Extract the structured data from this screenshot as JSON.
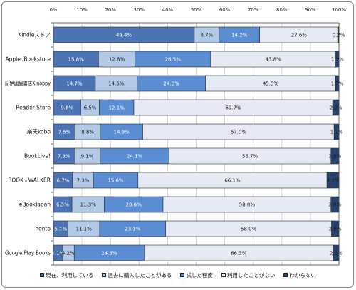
{
  "chart_data": {
    "type": "bar",
    "orientation": "horizontal",
    "stacking": "percent",
    "x_axis_position": "top",
    "xlim": [
      0,
      100
    ],
    "x_ticks": [
      "0%",
      "10%",
      "20%",
      "30%",
      "40%",
      "50%",
      "60%",
      "70%",
      "80%",
      "90%",
      "100%"
    ],
    "grid": true,
    "legend": "bottom",
    "value_suffix": "%",
    "categories": [
      "Kindleストア",
      "Apple iBookstore",
      "紀伊國屋書店Kinoppy",
      "Reader Store",
      "楽天kobo",
      "BookLive!",
      "BOOK☆WALKER",
      "eBookJapan",
      "honto",
      "Google Play Books"
    ],
    "series": [
      {
        "name": "現在、利用している",
        "color": "#4a74b3",
        "label_color": "#ffffff",
        "values": [
          49.4,
          15.8,
          14.7,
          9.6,
          7.6,
          7.3,
          6.7,
          6.5,
          5.1,
          3.1
        ]
      },
      {
        "name": "過去に購入したことがある",
        "color": "#b3c9e8",
        "label_color": "#1a1a1a",
        "values": [
          8.7,
          12.8,
          14.6,
          6.5,
          8.8,
          9.1,
          7.3,
          11.3,
          11.1,
          4.2
        ]
      },
      {
        "name": "試した程度",
        "color": "#5b8dd3",
        "label_color": "#ffffff",
        "values": [
          14.2,
          26.5,
          24.0,
          12.1,
          14.9,
          24.1,
          15.6,
          20.6,
          23.1,
          24.5
        ]
      },
      {
        "name": "利用したことがない",
        "color": "#e5eaf4",
        "label_color": "#1a1a1a",
        "values": [
          27.6,
          43.8,
          45.5,
          69.7,
          67.0,
          56.7,
          66.1,
          58.8,
          58.0,
          66.3
        ]
      },
      {
        "name": "わからない",
        "color": "#27426e",
        "label_color": "#1a1a1a",
        "values": [
          0.2,
          1.1,
          1.2,
          2.2,
          1.7,
          2.8,
          4.2,
          2.8,
          2.6,
          2.0
        ]
      }
    ]
  }
}
